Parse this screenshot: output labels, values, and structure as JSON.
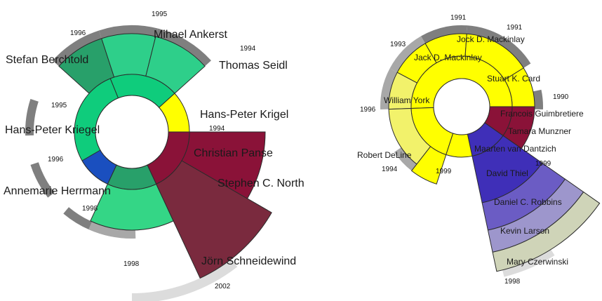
{
  "colors": {
    "green": "#0fcc7c",
    "green_dark": "#28a06a",
    "green_mid": "#2ecf8a",
    "green_light": "#34d686",
    "yellow": "#ffff00",
    "yellow_soft": "#f2f26b",
    "blue": "#1a4fbf",
    "maroon": "#8a1238",
    "maroon_dark": "#7a2a3e",
    "indigo": "#3f2fb8",
    "violet": "#6b5cc4",
    "lavender": "#9d96cc",
    "sage": "#cfd4b8",
    "band_dark": "#7f7f7f",
    "band_mid": "#a8a8a8",
    "band_light": "#dcdcdc"
  },
  "left": {
    "authors": [
      {
        "name": "Stefan Berchtold",
        "year": "1996"
      },
      {
        "name": "Mihael Ankerst",
        "year": "1995"
      },
      {
        "name": "Thomas Seidl",
        "year": "1994"
      },
      {
        "name": "Hans-Peter Krigel",
        "year": "1994"
      },
      {
        "name": "Hans-Peter Kriegel",
        "year": "1995"
      },
      {
        "name": "Annemarie Herrmann",
        "year": "1996"
      },
      {
        "name": "Christian Panse",
        "year": "1998"
      },
      {
        "name": "Stephen C. North",
        "year": "1998"
      },
      {
        "name": "Jörn Schneidewind",
        "year": "2002"
      }
    ]
  },
  "right": {
    "authors": [
      {
        "name": "Jock D. Mackinlay",
        "year": "1991"
      },
      {
        "name": "Jack D. Mackinlay",
        "year": "1991"
      },
      {
        "name": "Stuart K. Card",
        "year": "1993"
      },
      {
        "name": "William York",
        "year": "1990"
      },
      {
        "name": "Robert DeLine",
        "year": "1996"
      },
      {
        "name": "Francois Guimbretiere",
        "year": "1994"
      },
      {
        "name": "Tamara Munzner",
        "year": "1999"
      },
      {
        "name": "Maarten van Dantzich",
        "year": "1999"
      },
      {
        "name": "David Thiel",
        "year": "1998"
      },
      {
        "name": "Daniel C. Robbins",
        "year": ""
      },
      {
        "name": "Kevin Larson",
        "year": ""
      },
      {
        "name": "Mary Czerwinski",
        "year": ""
      }
    ]
  }
}
